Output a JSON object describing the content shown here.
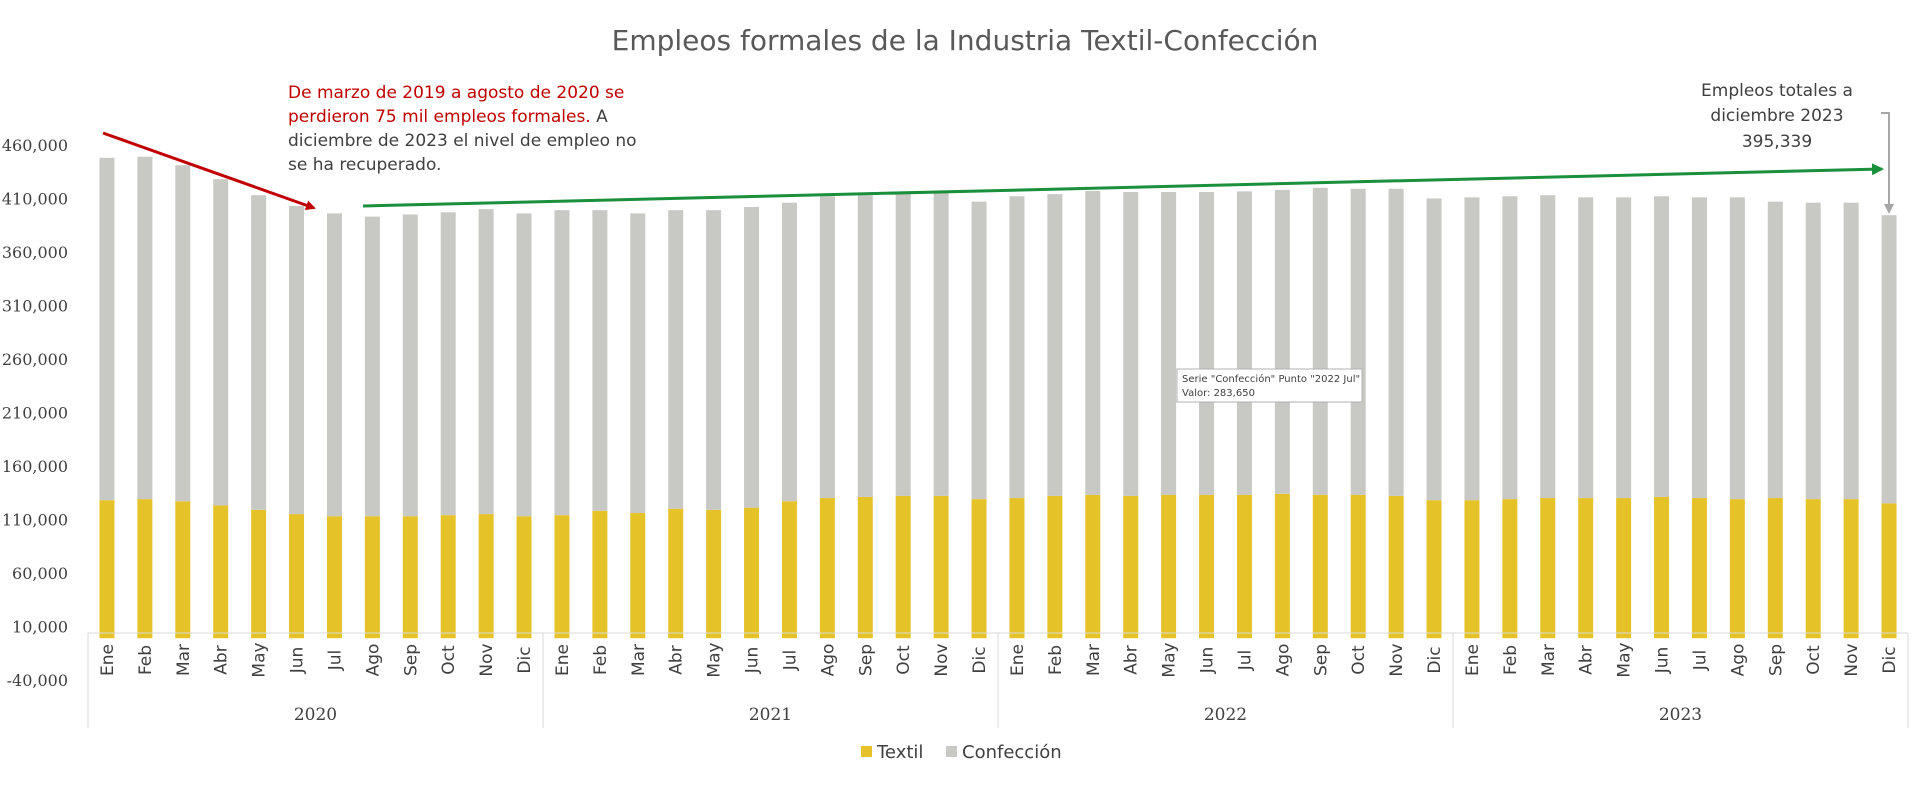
{
  "chart_data": {
    "type": "bar",
    "stacked": true,
    "title": "Empleos formales de la Industria Textil-Confección",
    "xlabel": "",
    "ylabel": "",
    "ylim": [
      -40000,
      460000
    ],
    "y_ticks": [
      "460,000",
      "410,000",
      "360,000",
      "310,000",
      "260,000",
      "210,000",
      "160,000",
      "110,000",
      "60,000",
      "10,000",
      "-40,000"
    ],
    "grid": false,
    "legend_position": "bottom",
    "years": [
      "2020",
      "2021",
      "2022",
      "2023"
    ],
    "months": [
      "Ene",
      "Feb",
      "Mar",
      "Abr",
      "May",
      "Jun",
      "Jul",
      "Ago",
      "Sep",
      "Oct",
      "Nov",
      "Dic"
    ],
    "series": [
      {
        "name": "Textil",
        "color": "#e6c229",
        "values": [
          129000,
          130000,
          128000,
          124000,
          120000,
          116000,
          114000,
          114000,
          114000,
          115000,
          116000,
          114000,
          115000,
          119000,
          117000,
          121000,
          120000,
          122000,
          128000,
          131000,
          132000,
          133000,
          133000,
          130000,
          131000,
          133000,
          134000,
          133000,
          134000,
          134000,
          134000,
          135000,
          134000,
          134000,
          133000,
          129000,
          129000,
          130000,
          131000,
          131000,
          131000,
          132000,
          131000,
          130000,
          131000,
          130000,
          130000,
          126000
        ]
      },
      {
        "name": "Confección",
        "color": "#c8c8c5",
        "values": [
          320000,
          320000,
          314000,
          305000,
          294000,
          288000,
          283000,
          280000,
          282000,
          283000,
          285000,
          283000,
          285000,
          281000,
          280000,
          279000,
          280000,
          281000,
          279000,
          282000,
          282000,
          283000,
          283000,
          278000,
          282000,
          282000,
          284000,
          284000,
          283000,
          283000,
          283650,
          284000,
          287000,
          286000,
          287000,
          282000,
          283000,
          283000,
          283000,
          281000,
          281000,
          281000,
          281000,
          282000,
          277000,
          277000,
          277000,
          269339
        ]
      }
    ],
    "annotations": {
      "left_red_line1": "De marzo de 2019 a agosto de 2020 se",
      "left_red_line2": "perdieron 75 mil empleos formales.",
      "left_gray_line2_tail": " A",
      "left_gray_line3": "diciembre de 2023 el nivel de empleo no",
      "left_gray_line4": "se ha recuperado.",
      "right_line1": "Empleos totales a",
      "right_line2": "diciembre 2023",
      "right_line3": "395,339",
      "tooltip_line1": "Serie \"Confección\" Punto \"2022 Jul\"",
      "tooltip_line2": "Valor:  283,650"
    },
    "arrow_colors": {
      "decline": "#c00000",
      "trend": "#1a8f3c",
      "pointer": "#a6a6a6"
    }
  }
}
